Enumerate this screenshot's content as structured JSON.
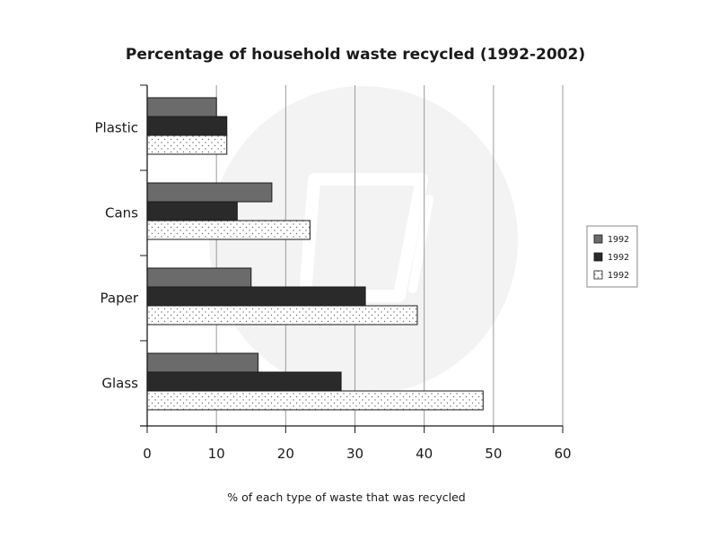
{
  "chart_data": {
    "type": "bar",
    "orientation": "horizontal",
    "title": "Percentage of household waste recycled (1992-2002)",
    "xlabel": "% of each type of waste that was recycled",
    "ylabel": "",
    "categories": [
      "Plastic",
      "Cans",
      "Paper",
      "Glass"
    ],
    "xlim": [
      0,
      60
    ],
    "xticks": [
      0,
      10,
      20,
      30,
      40,
      50,
      60
    ],
    "grid": true,
    "legend_position": "right",
    "series": [
      {
        "name": "1992",
        "values": [
          10,
          18,
          15,
          16
        ],
        "color": "#6b6b6b",
        "pattern": "solid"
      },
      {
        "name": "1992",
        "values": [
          11.5,
          13,
          31.5,
          28
        ],
        "color": "#2a2a2a",
        "pattern": "solid"
      },
      {
        "name": "1992",
        "values": [
          11.5,
          23.5,
          39,
          48.5
        ],
        "color": "#ffffff",
        "pattern": "dots"
      }
    ]
  }
}
